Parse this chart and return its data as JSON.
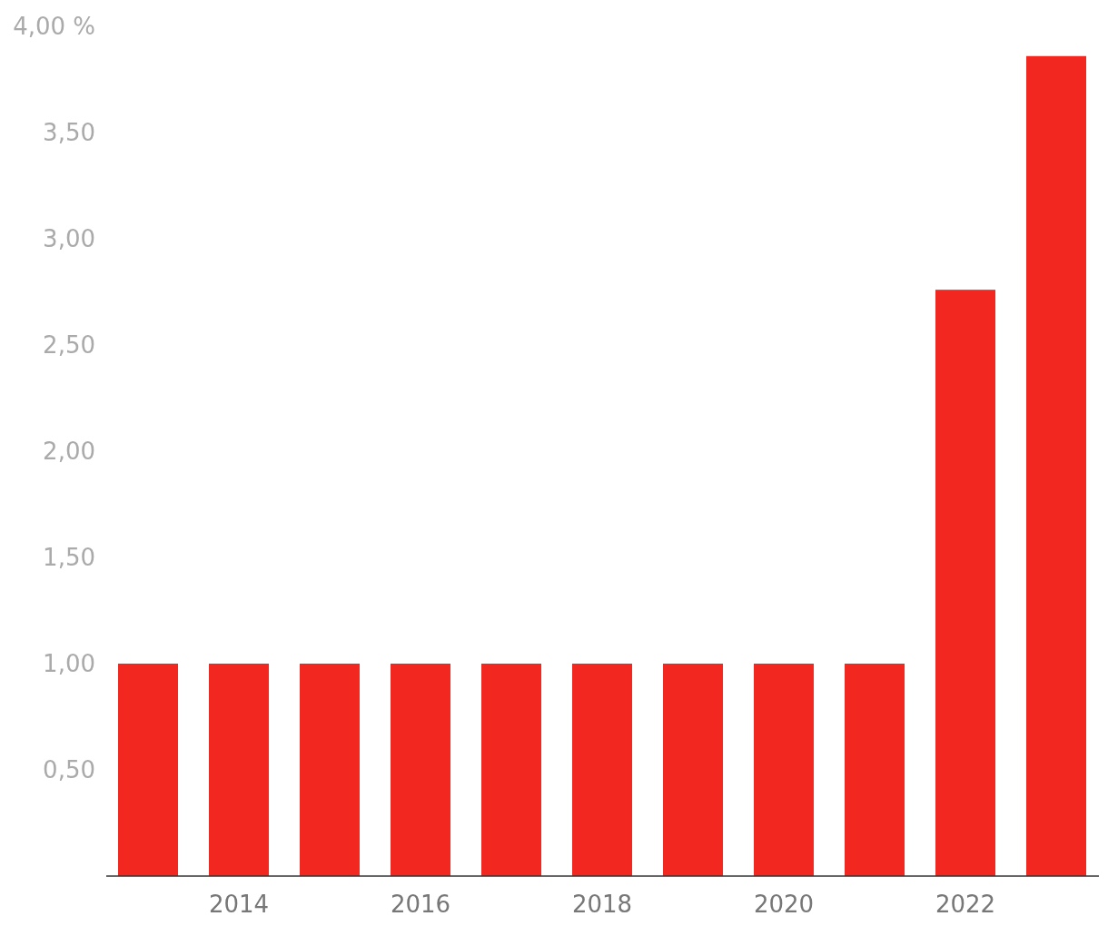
{
  "chart_data": {
    "type": "bar",
    "categories": [
      null,
      "2014",
      null,
      "2016",
      null,
      "2018",
      null,
      "2020",
      null,
      "2022",
      null
    ],
    "values": [
      1.0,
      1.0,
      1.0,
      1.0,
      1.0,
      1.0,
      1.0,
      1.0,
      1.0,
      2.76,
      3.86
    ],
    "color": "#f22820",
    "ylim": [
      0,
      4
    ],
    "yticks": [
      {
        "value": 0.5,
        "label": "0,50"
      },
      {
        "value": 1,
        "label": "1,00"
      },
      {
        "value": 1.5,
        "label": "1,50"
      },
      {
        "value": 2,
        "label": "2,00"
      },
      {
        "value": 2.5,
        "label": "2,50"
      },
      {
        "value": 3,
        "label": "3,00"
      },
      {
        "value": 3.5,
        "label": "3,50"
      },
      {
        "value": 4,
        "label": "4,00 %"
      }
    ],
    "grid": false
  }
}
